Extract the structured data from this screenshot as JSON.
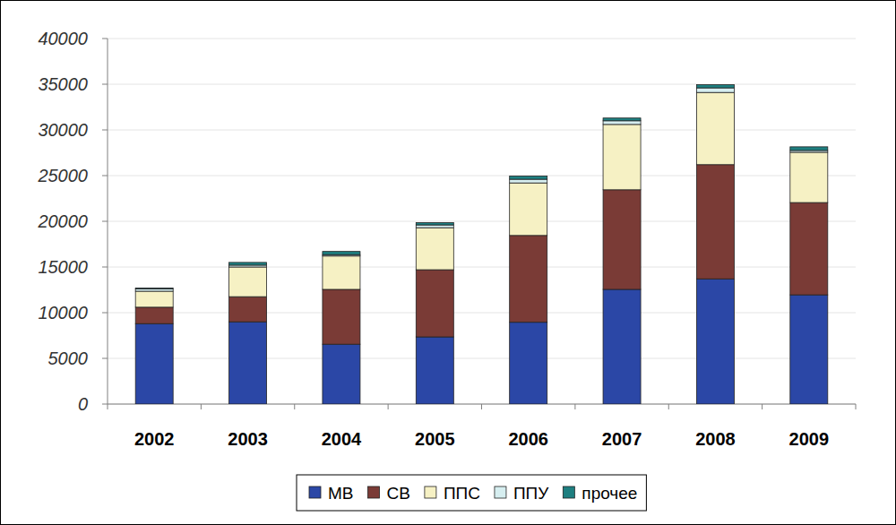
{
  "chart_data": {
    "type": "bar",
    "stacked": true,
    "grid": true,
    "legend": "bottom",
    "categories": [
      "2002",
      "2003",
      "2004",
      "2005",
      "2006",
      "2007",
      "2008",
      "2009"
    ],
    "ylim": [
      0,
      40000
    ],
    "yticks": [
      0,
      5000,
      10000,
      15000,
      20000,
      25000,
      30000,
      35000,
      40000
    ],
    "series": [
      {
        "name": "МВ",
        "color": "#2b47a6",
        "values": [
          8800,
          9000,
          6550,
          7350,
          8950,
          12550,
          13700,
          11950
        ]
      },
      {
        "name": "СВ",
        "color": "#7a3b36",
        "values": [
          1800,
          2750,
          6000,
          7350,
          9500,
          10900,
          12500,
          10100
        ]
      },
      {
        "name": "ППС",
        "color": "#f6f1c4",
        "values": [
          1750,
          3250,
          3650,
          4600,
          5750,
          7150,
          7900,
          5500
        ]
      },
      {
        "name": "ППУ",
        "color": "#d6eef0",
        "values": [
          250,
          200,
          150,
          300,
          400,
          400,
          500,
          200
        ]
      },
      {
        "name": "прочее",
        "color": "#1e7f80",
        "values": [
          100,
          300,
          350,
          250,
          350,
          300,
          350,
          400
        ]
      }
    ]
  }
}
